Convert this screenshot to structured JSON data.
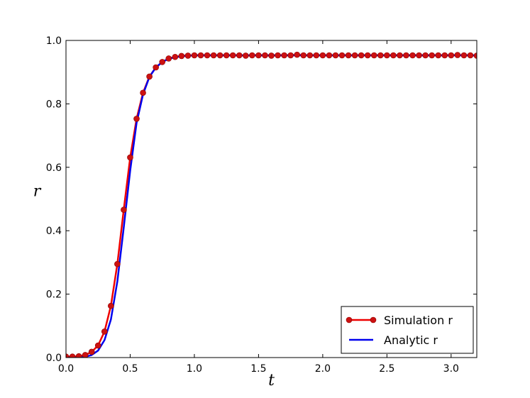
{
  "chart_data": {
    "type": "line",
    "xlabel": "t",
    "ylabel": "r",
    "xlim": [
      0.0,
      3.2
    ],
    "ylim": [
      0.0,
      1.0
    ],
    "xticks": [
      0.0,
      0.5,
      1.0,
      1.5,
      2.0,
      2.5,
      3.0
    ],
    "xtick_labels": [
      "0.0",
      "0.5",
      "1.0",
      "1.5",
      "2.0",
      "2.5",
      "3.0"
    ],
    "yticks": [
      0.0,
      0.2,
      0.4,
      0.6,
      0.8,
      1.0
    ],
    "ytick_labels": [
      "0.0",
      "0.2",
      "0.4",
      "0.6",
      "0.8",
      "1.0"
    ],
    "grid": false,
    "legend_position": "lower-right",
    "series": [
      {
        "name": "Simulation r",
        "style": "line-with-markers",
        "color": "#ee0000",
        "marker_color": "#cc1111",
        "x": [
          0.0,
          0.05,
          0.1,
          0.15,
          0.2,
          0.25,
          0.3,
          0.35,
          0.4,
          0.45,
          0.5,
          0.55,
          0.6,
          0.65,
          0.7,
          0.75,
          0.8,
          0.85,
          0.9,
          0.95,
          1.0,
          1.05,
          1.1,
          1.15,
          1.2,
          1.25,
          1.3,
          1.35,
          1.4,
          1.45,
          1.5,
          1.55,
          1.6,
          1.65,
          1.7,
          1.75,
          1.8,
          1.85,
          1.9,
          1.95,
          2.0,
          2.05,
          2.1,
          2.15,
          2.2,
          2.25,
          2.3,
          2.35,
          2.4,
          2.45,
          2.5,
          2.55,
          2.6,
          2.65,
          2.7,
          2.75,
          2.8,
          2.85,
          2.9,
          2.95,
          3.0,
          3.05,
          3.1,
          3.15,
          3.2
        ],
        "y": [
          0.003,
          0.003,
          0.004,
          0.008,
          0.018,
          0.038,
          0.082,
          0.163,
          0.295,
          0.466,
          0.631,
          0.753,
          0.835,
          0.886,
          0.915,
          0.932,
          0.943,
          0.948,
          0.951,
          0.952,
          0.953,
          0.953,
          0.953,
          0.953,
          0.953,
          0.953,
          0.953,
          0.953,
          0.952,
          0.953,
          0.953,
          0.953,
          0.952,
          0.953,
          0.953,
          0.953,
          0.955,
          0.953,
          0.953,
          0.953,
          0.953,
          0.953,
          0.953,
          0.953,
          0.953,
          0.953,
          0.953,
          0.953,
          0.953,
          0.953,
          0.953,
          0.953,
          0.953,
          0.953,
          0.953,
          0.953,
          0.953,
          0.953,
          0.953,
          0.953,
          0.953,
          0.954,
          0.953,
          0.953,
          0.952
        ]
      },
      {
        "name": "Analytic r",
        "style": "line",
        "color": "#0000ee",
        "x": [
          0.0,
          0.05,
          0.1,
          0.15,
          0.2,
          0.25,
          0.3,
          0.35,
          0.4,
          0.45,
          0.5,
          0.55,
          0.6,
          0.65,
          0.7,
          0.75,
          0.8,
          0.85,
          0.9,
          0.95,
          1.0,
          1.2,
          1.5,
          2.0,
          2.5,
          3.0,
          3.2
        ],
        "y": [
          0.0,
          0.0,
          0.0,
          0.002,
          0.008,
          0.022,
          0.055,
          0.12,
          0.24,
          0.41,
          0.59,
          0.74,
          0.83,
          0.885,
          0.915,
          0.932,
          0.942,
          0.947,
          0.95,
          0.952,
          0.953,
          0.953,
          0.953,
          0.953,
          0.953,
          0.953,
          0.953
        ]
      }
    ]
  }
}
